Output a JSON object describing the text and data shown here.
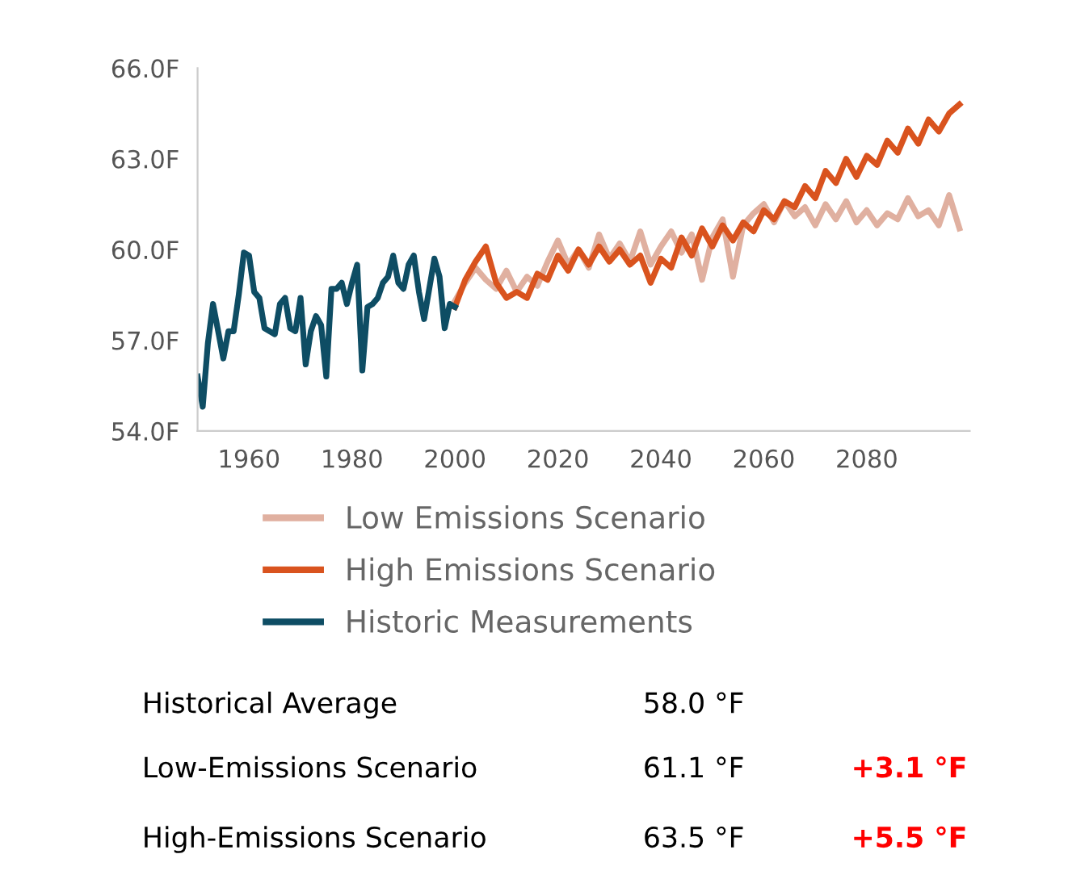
{
  "chart_data": {
    "type": "line",
    "xlim": [
      1950,
      2100
    ],
    "xticks": [
      1960,
      1980,
      2000,
      2020,
      2040,
      2060,
      2080
    ],
    "ylim": [
      54,
      66
    ],
    "yticks": [
      {
        "value": 54,
        "label": "54.0F"
      },
      {
        "value": 57,
        "label": "57.0F"
      },
      {
        "value": 60,
        "label": "60.0F"
      },
      {
        "value": 63,
        "label": "63.0F"
      },
      {
        "value": 66,
        "label": "66.0F"
      }
    ],
    "grid": false,
    "legend": "bottom",
    "series": [
      {
        "name": "Low Emissions Scenario",
        "color": "#e0b0a0",
        "x": [
          2000,
          2002,
          2004,
          2006,
          2008,
          2010,
          2012,
          2014,
          2016,
          2018,
          2020,
          2022,
          2024,
          2026,
          2028,
          2030,
          2032,
          2034,
          2036,
          2038,
          2040,
          2042,
          2044,
          2046,
          2048,
          2050,
          2052,
          2054,
          2056,
          2058,
          2060,
          2062,
          2064,
          2066,
          2068,
          2070,
          2072,
          2074,
          2076,
          2078,
          2080,
          2082,
          2084,
          2086,
          2088,
          2090,
          2092,
          2094,
          2096,
          2098
        ],
        "values": [
          58.3,
          58.9,
          59.4,
          59.0,
          58.7,
          59.3,
          58.6,
          59.1,
          58.8,
          59.6,
          60.3,
          59.5,
          60.0,
          59.4,
          60.5,
          59.7,
          60.2,
          59.6,
          60.6,
          59.5,
          60.1,
          60.6,
          59.9,
          60.5,
          59.0,
          60.4,
          61.0,
          59.1,
          60.8,
          61.2,
          61.5,
          60.9,
          61.6,
          61.1,
          61.4,
          60.8,
          61.5,
          61.0,
          61.6,
          60.9,
          61.3,
          60.8,
          61.2,
          61.0,
          61.7,
          61.1,
          61.3,
          60.8,
          61.8,
          60.7
        ]
      },
      {
        "name": "High Emissions Scenario",
        "color": "#d9531e",
        "x": [
          2000,
          2002,
          2004,
          2006,
          2008,
          2010,
          2012,
          2014,
          2016,
          2018,
          2020,
          2022,
          2024,
          2026,
          2028,
          2030,
          2032,
          2034,
          2036,
          2038,
          2040,
          2042,
          2044,
          2046,
          2048,
          2050,
          2052,
          2054,
          2056,
          2058,
          2060,
          2062,
          2064,
          2066,
          2068,
          2070,
          2072,
          2074,
          2076,
          2078,
          2080,
          2082,
          2084,
          2086,
          2088,
          2090,
          2092,
          2094,
          2096,
          2098
        ],
        "values": [
          58.1,
          59.0,
          59.6,
          60.1,
          58.9,
          58.4,
          58.6,
          58.4,
          59.2,
          59.0,
          59.8,
          59.3,
          60.0,
          59.5,
          60.1,
          59.6,
          60.0,
          59.5,
          59.8,
          58.9,
          59.7,
          59.4,
          60.4,
          59.8,
          60.7,
          60.1,
          60.8,
          60.3,
          60.9,
          60.6,
          61.3,
          61.0,
          61.6,
          61.4,
          62.1,
          61.7,
          62.6,
          62.2,
          63.0,
          62.4,
          63.1,
          62.8,
          63.6,
          63.2,
          64.0,
          63.5,
          64.3,
          63.9,
          64.5,
          64.8
        ]
      },
      {
        "name": "Historic Measurements",
        "color": "#0e4d64",
        "x": [
          1950,
          1951,
          1952,
          1953,
          1954,
          1955,
          1956,
          1957,
          1958,
          1959,
          1960,
          1961,
          1962,
          1963,
          1964,
          1965,
          1966,
          1967,
          1968,
          1969,
          1970,
          1971,
          1972,
          1973,
          1974,
          1975,
          1976,
          1977,
          1978,
          1979,
          1980,
          1981,
          1982,
          1983,
          1984,
          1985,
          1986,
          1987,
          1988,
          1989,
          1990,
          1991,
          1992,
          1993,
          1994,
          1995,
          1996,
          1997,
          1998,
          1999,
          2000
        ],
        "values": [
          55.8,
          54.8,
          56.9,
          58.2,
          57.3,
          56.4,
          57.3,
          57.3,
          58.5,
          59.9,
          59.8,
          58.6,
          58.4,
          57.4,
          57.3,
          57.2,
          58.2,
          58.4,
          57.4,
          57.3,
          58.4,
          56.2,
          57.3,
          57.8,
          57.5,
          55.8,
          58.7,
          58.7,
          58.9,
          58.2,
          58.9,
          59.5,
          56.0,
          58.1,
          58.2,
          58.4,
          58.9,
          59.1,
          59.8,
          58.9,
          58.7,
          59.5,
          59.8,
          58.6,
          57.7,
          58.7,
          59.7,
          59.1,
          57.4,
          58.2,
          58.1
        ]
      }
    ],
    "annotations": [
      "Historical Average",
      "58.0 °F",
      "Low-Emissions Scenario",
      "61.1 °F",
      "+3.1 °F",
      "High-Emissions Scenario",
      "63.5 °F",
      "+5.5 °F"
    ]
  }
}
